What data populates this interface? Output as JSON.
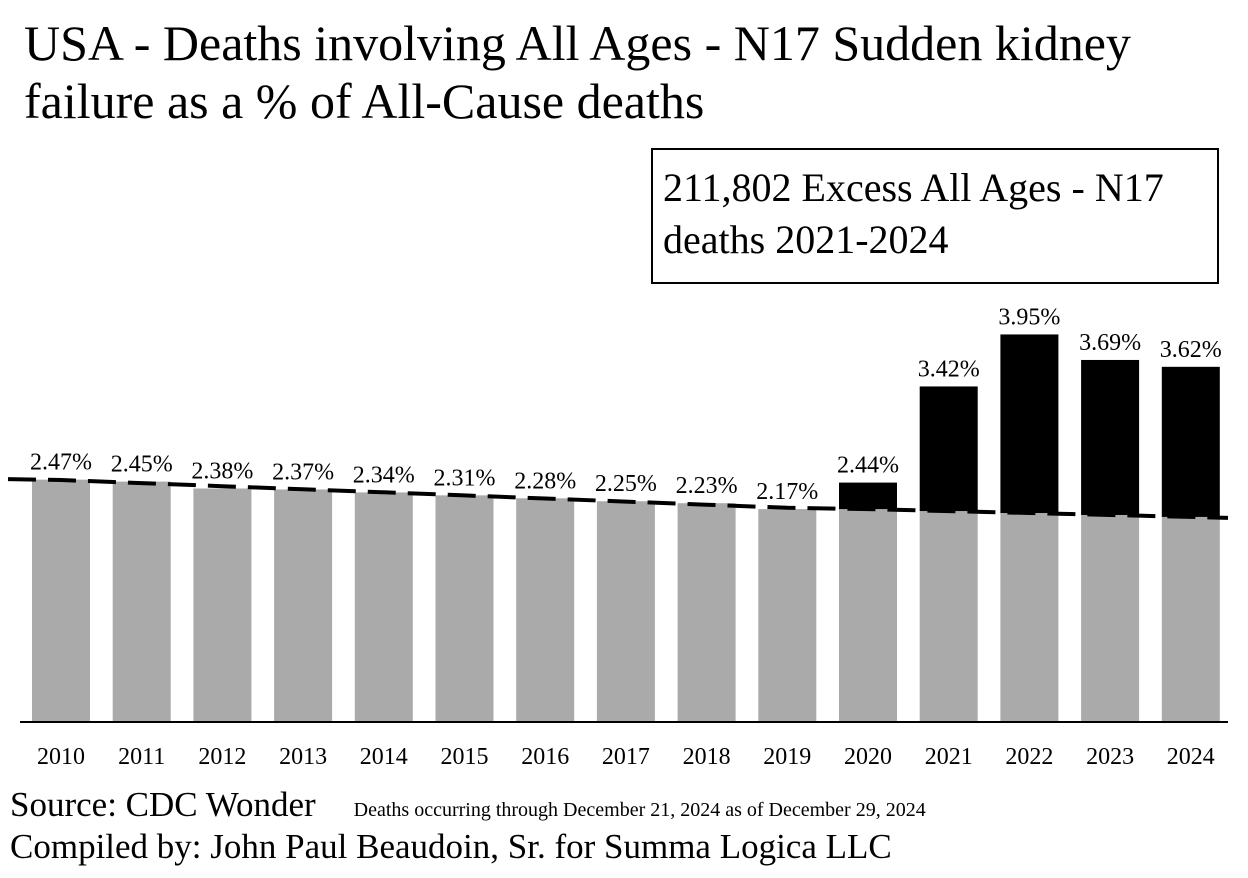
{
  "title": "USA - Deaths involving All Ages - N17 Sudden kidney failure as a % of All-Cause deaths",
  "callout": "211,802 Excess All Ages - N17 deaths 2021-2024",
  "chart_data": {
    "type": "bar",
    "categories": [
      "2010",
      "2011",
      "2012",
      "2013",
      "2014",
      "2015",
      "2016",
      "2017",
      "2018",
      "2019",
      "2020",
      "2021",
      "2022",
      "2023",
      "2024"
    ],
    "values": [
      2.47,
      2.45,
      2.38,
      2.37,
      2.34,
      2.31,
      2.28,
      2.25,
      2.23,
      2.17,
      2.44,
      3.42,
      3.95,
      3.69,
      3.62
    ],
    "labels": [
      "2.47%",
      "2.45%",
      "2.38%",
      "2.37%",
      "2.34%",
      "2.31%",
      "2.28%",
      "2.25%",
      "2.23%",
      "2.17%",
      "2.44%",
      "3.42%",
      "3.95%",
      "3.69%",
      "3.62%"
    ],
    "trend": [
      2.17,
      2.15,
      2.13,
      2.11,
      2.09
    ],
    "ylim": [
      0,
      4.0
    ],
    "colors": {
      "baseline": "#aaaaaa",
      "excess": "#000000",
      "trend": "#000000"
    }
  },
  "footer": {
    "source_label": "Source:  CDC Wonder",
    "note": "Deaths occurring through December 21, 2024 as of December 29, 2024",
    "compiled": "Compiled by:  John Paul Beaudoin, Sr. for Summa Logica LLC"
  }
}
